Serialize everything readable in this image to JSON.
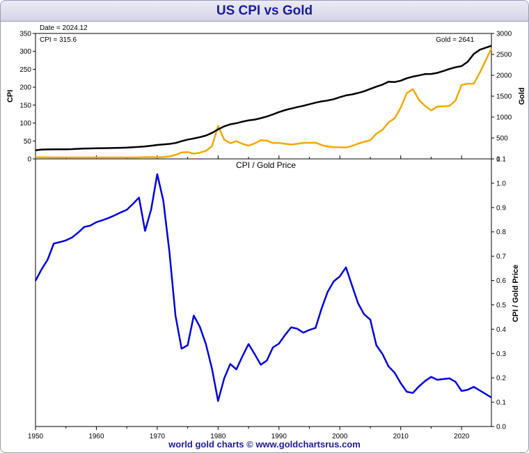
{
  "header": {
    "title": "US CPI vs Gold"
  },
  "footer": {
    "credit": "world gold charts © www.goldchartsrus.com"
  },
  "readouts": {
    "date": "Date = 2024.12",
    "cpi": "CPI = 315.6",
    "gold": "Gold = 2641"
  },
  "colors": {
    "cpi": "#000000",
    "gold": "#f5a800",
    "ratio": "#0000dd",
    "title": "#1c1c9a"
  },
  "chart_data": [
    {
      "type": "line",
      "title": "US CPI vs Gold",
      "xlabel": "",
      "ylabel": "CPI",
      "y2label": "Gold",
      "xlim": [
        1950,
        2024.9
      ],
      "ylim": [
        0,
        350
      ],
      "y2lim": [
        0,
        3000
      ],
      "y_ticks": [
        0,
        50,
        100,
        150,
        200,
        250,
        300,
        350
      ],
      "y2_ticks": [
        0,
        500,
        1000,
        1500,
        2000,
        2500,
        3000
      ],
      "x": [
        1950,
        1951,
        1952,
        1953,
        1954,
        1955,
        1956,
        1957,
        1958,
        1959,
        1960,
        1961,
        1962,
        1963,
        1964,
        1965,
        1966,
        1967,
        1968,
        1969,
        1970,
        1971,
        1972,
        1973,
        1974,
        1975,
        1976,
        1977,
        1978,
        1979,
        1980,
        1981,
        1982,
        1983,
        1984,
        1985,
        1986,
        1987,
        1988,
        1989,
        1990,
        1991,
        1992,
        1993,
        1994,
        1995,
        1996,
        1997,
        1998,
        1999,
        2000,
        2001,
        2002,
        2003,
        2004,
        2005,
        2006,
        2007,
        2008,
        2009,
        2010,
        2011,
        2012,
        2013,
        2014,
        2015,
        2016,
        2017,
        2018,
        2019,
        2020,
        2021,
        2022,
        2023,
        2024.9
      ],
      "series": [
        {
          "name": "CPI",
          "axis": "left",
          "values": [
            24.1,
            26.0,
            26.5,
            26.7,
            26.9,
            26.8,
            27.2,
            28.1,
            28.9,
            29.1,
            29.6,
            29.9,
            30.2,
            30.6,
            31.0,
            31.5,
            32.4,
            33.4,
            34.8,
            36.7,
            38.8,
            40.5,
            41.8,
            44.4,
            49.3,
            53.8,
            56.9,
            60.6,
            65.2,
            72.6,
            82.4,
            90.9,
            96.5,
            99.6,
            103.9,
            107.6,
            109.6,
            113.6,
            118.3,
            124.0,
            130.7,
            136.2,
            140.3,
            144.5,
            148.2,
            152.4,
            156.9,
            160.5,
            163.0,
            166.6,
            172.2,
            177.1,
            179.9,
            184.0,
            188.9,
            195.3,
            201.6,
            207.3,
            215.3,
            214.5,
            218.1,
            224.9,
            229.6,
            233.0,
            236.7,
            237.0,
            240.0,
            245.1,
            251.1,
            255.7,
            258.8,
            271.0,
            292.7,
            304.7,
            315.6
          ]
        },
        {
          "name": "Gold",
          "axis": "right",
          "values": [
            40.25,
            40.25,
            38.6,
            35.5,
            35.5,
            35.03,
            34.99,
            35.25,
            35.25,
            35.25,
            35.25,
            35.25,
            35.25,
            35.25,
            35.25,
            35.35,
            35.4,
            35.5,
            43.3,
            41.1,
            37.4,
            43.6,
            58.2,
            97.3,
            154.0,
            160.9,
            124.8,
            147.7,
            193.2,
            306.7,
            788.0,
            460.0,
            376.0,
            424.0,
            360.0,
            317.0,
            368.0,
            447.0,
            437.0,
            381.0,
            383.5,
            362.1,
            343.8,
            359.8,
            384.0,
            384.2,
            387.8,
            331.0,
            294.2,
            279.0,
            279.1,
            271.0,
            310.0,
            363.5,
            409.7,
            444.7,
            603.5,
            695.4,
            871.9,
            972.4,
            1224.5,
            1571.5,
            1668.9,
            1411.2,
            1266.4,
            1160.1,
            1250.7,
            1257.1,
            1268.0,
            1392.6,
            1770.0,
            1798.6,
            1800.0,
            2062.9,
            2641.0
          ]
        }
      ]
    },
    {
      "type": "line",
      "title": "CPI / Gold Price",
      "xlabel": "",
      "ylabel": "CPI / Gold Price",
      "xlim": [
        1950,
        2024.9
      ],
      "ylim": [
        0,
        1.1
      ],
      "y_ticks": [
        0.0,
        0.1,
        0.2,
        0.3,
        0.4,
        0.5,
        0.6,
        0.7,
        0.8,
        0.9,
        1.0,
        1.1
      ],
      "x_ticks": [
        1950,
        1960,
        1970,
        1980,
        1990,
        2000,
        2010,
        2020
      ],
      "x": [
        1950,
        1951,
        1952,
        1953,
        1954,
        1955,
        1956,
        1957,
        1958,
        1959,
        1960,
        1961,
        1962,
        1963,
        1964,
        1965,
        1966,
        1967,
        1968,
        1969,
        1970,
        1971,
        1972,
        1973,
        1974,
        1975,
        1976,
        1977,
        1978,
        1979,
        1980,
        1981,
        1982,
        1983,
        1984,
        1985,
        1986,
        1987,
        1988,
        1989,
        1990,
        1991,
        1992,
        1993,
        1994,
        1995,
        1996,
        1997,
        1998,
        1999,
        2000,
        2001,
        2002,
        2003,
        2004,
        2005,
        2006,
        2007,
        2008,
        2009,
        2010,
        2011,
        2012,
        2013,
        2014,
        2015,
        2016,
        2017,
        2018,
        2019,
        2020,
        2021,
        2022,
        2023,
        2024.9
      ],
      "series": [
        {
          "name": "CPI / Gold Price",
          "values": [
            0.599,
            0.646,
            0.686,
            0.752,
            0.758,
            0.765,
            0.777,
            0.797,
            0.82,
            0.826,
            0.84,
            0.848,
            0.857,
            0.868,
            0.88,
            0.891,
            0.915,
            0.941,
            0.804,
            0.893,
            1.037,
            0.929,
            0.718,
            0.456,
            0.32,
            0.334,
            0.456,
            0.41,
            0.338,
            0.237,
            0.105,
            0.198,
            0.257,
            0.235,
            0.289,
            0.339,
            0.298,
            0.254,
            0.271,
            0.325,
            0.341,
            0.376,
            0.408,
            0.402,
            0.386,
            0.397,
            0.405,
            0.485,
            0.554,
            0.597,
            0.617,
            0.654,
            0.58,
            0.506,
            0.461,
            0.439,
            0.334,
            0.298,
            0.247,
            0.221,
            0.178,
            0.143,
            0.138,
            0.165,
            0.187,
            0.204,
            0.192,
            0.195,
            0.198,
            0.184,
            0.146,
            0.151,
            0.163,
            0.148,
            0.1195
          ]
        }
      ]
    }
  ]
}
